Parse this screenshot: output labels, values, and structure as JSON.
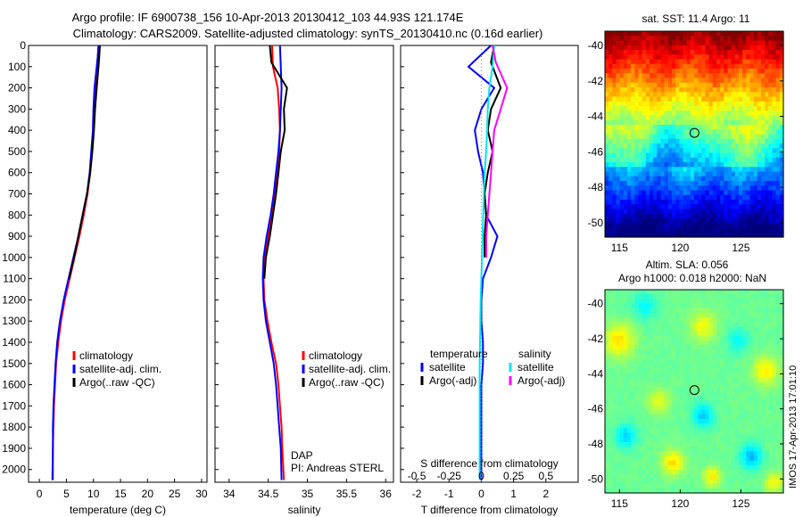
{
  "header": {
    "line1": "Argo profile: IF 6900738_156 10-Apr-2013 20130412_103 44.93S 121.174E",
    "line2": "Climatology: CARS2009. Satellite-adjusted climatology: synTS_20130410.nc (0.16d earlier)"
  },
  "footer": {
    "stamp": "IMOS 17-Apr-2013 17:01:10"
  },
  "colors": {
    "climatology": "#ff0000",
    "satellite": "#0000ff",
    "argo": "#000000",
    "satellite_salinity": "#00e5ee",
    "argo_salinity": "#ff00ff",
    "sst_cmap": [
      "#00007f",
      "#0000ff",
      "#0080ff",
      "#00ffff",
      "#80ff80",
      "#ffff00",
      "#ff8000",
      "#ff0000",
      "#7f0000"
    ]
  },
  "chart_data": [
    {
      "type": "line",
      "name": "temperature-panel",
      "xlabel": "temperature (deg C)",
      "ylabel": "",
      "xlim": [
        -2,
        31
      ],
      "ylim": [
        2060,
        0
      ],
      "xticks": [
        0,
        5,
        10,
        15,
        20,
        25,
        30
      ],
      "yticks": [
        0,
        100,
        200,
        300,
        400,
        500,
        600,
        700,
        800,
        900,
        1000,
        1100,
        1200,
        1300,
        1400,
        1500,
        1600,
        1700,
        1800,
        1900,
        2000
      ],
      "legend": [
        {
          "label": "climatology",
          "color": "#ff0000"
        },
        {
          "label": "satellite-adj. clim.",
          "color": "#0000ff"
        },
        {
          "label": "Argo(..raw -QC)",
          "color": "#000000"
        }
      ],
      "series": [
        {
          "name": "climatology",
          "color": "#ff0000",
          "x": [
            10.9,
            10.7,
            10.5,
            10.3,
            10.0,
            9.7,
            9.4,
            8.9,
            8.2,
            7.4,
            6.5,
            5.6,
            4.7,
            4.0,
            3.5,
            3.1,
            2.9,
            2.7,
            2.6,
            2.5,
            2.5
          ],
          "y": [
            0,
            100,
            200,
            300,
            400,
            500,
            600,
            700,
            800,
            900,
            1000,
            1100,
            1200,
            1300,
            1400,
            1500,
            1600,
            1700,
            1800,
            1900,
            2050
          ]
        },
        {
          "name": "satellite-adj. clim.",
          "color": "#0000ff",
          "x": [
            11.0,
            10.6,
            10.2,
            10.0,
            9.9,
            9.6,
            9.3,
            8.8,
            8.0,
            7.2,
            6.3,
            5.4,
            4.5,
            3.8,
            3.3,
            3.0,
            2.8,
            2.6,
            2.5,
            2.5,
            2.4
          ],
          "y": [
            0,
            100,
            200,
            300,
            400,
            500,
            600,
            700,
            800,
            900,
            1000,
            1100,
            1200,
            1300,
            1400,
            1500,
            1600,
            1700,
            1800,
            1900,
            2050
          ]
        },
        {
          "name": "Argo(..raw -QC)",
          "color": "#000000",
          "x": [
            11.2,
            11.0,
            10.6,
            10.3,
            10.1,
            9.8,
            9.4,
            8.8,
            8.0,
            7.2,
            6.4,
            5.5
          ],
          "y": [
            0,
            80,
            200,
            300,
            400,
            500,
            600,
            700,
            800,
            900,
            1000,
            1100
          ]
        }
      ]
    },
    {
      "type": "line",
      "name": "salinity-panel",
      "xlabel": "salinity",
      "ylabel": "",
      "xlim": [
        33.82,
        36.1
      ],
      "ylim": [
        2060,
        0
      ],
      "xticks": [
        34,
        34.5,
        35,
        35.5,
        36
      ],
      "legend": [
        {
          "label": "climatology",
          "color": "#ff0000"
        },
        {
          "label": "satellite-adj. clim.",
          "color": "#0000ff"
        },
        {
          "label": "Argo(..raw -QC)",
          "color": "#000000"
        }
      ],
      "annotation": [
        "DAP",
        "PI: Andreas STERL"
      ],
      "series": [
        {
          "name": "climatology",
          "color": "#ff0000",
          "x": [
            34.55,
            34.56,
            34.62,
            34.64,
            34.65,
            34.64,
            34.62,
            34.59,
            34.55,
            34.5,
            34.46,
            34.44,
            34.45,
            34.49,
            34.54,
            34.6,
            34.63,
            34.65,
            34.67,
            34.68,
            34.7
          ],
          "y": [
            0,
            100,
            200,
            300,
            400,
            500,
            600,
            700,
            800,
            900,
            1000,
            1100,
            1200,
            1300,
            1400,
            1500,
            1600,
            1700,
            1800,
            1900,
            2050
          ]
        },
        {
          "name": "satellite-adj. clim.",
          "color": "#0000ff",
          "x": [
            34.65,
            34.66,
            34.67,
            34.66,
            34.65,
            34.63,
            34.6,
            34.57,
            34.53,
            34.48,
            34.44,
            34.43,
            34.44,
            34.47,
            34.52,
            34.57,
            34.6,
            34.62,
            34.64,
            34.66,
            34.67
          ],
          "y": [
            0,
            100,
            200,
            300,
            400,
            500,
            600,
            700,
            800,
            900,
            1000,
            1100,
            1200,
            1300,
            1400,
            1500,
            1600,
            1700,
            1800,
            1900,
            2050
          ]
        },
        {
          "name": "Argo(..raw -QC)",
          "color": "#000000",
          "x": [
            34.52,
            34.54,
            34.74,
            34.7,
            34.71,
            34.66,
            34.63,
            34.6,
            34.56,
            34.52,
            34.47,
            34.45
          ],
          "y": [
            0,
            80,
            200,
            300,
            400,
            500,
            600,
            700,
            800,
            900,
            1000,
            1100
          ]
        }
      ]
    },
    {
      "type": "line",
      "name": "difference-panel",
      "xlabel": "T difference from climatology",
      "xlabel_top": "S difference from climatology",
      "xlim": [
        -2.5,
        3
      ],
      "ylim": [
        2060,
        0
      ],
      "xticks": [
        -2,
        -1,
        0,
        1,
        2
      ],
      "xticks_s": [
        "-0.5",
        "-0.25",
        "0",
        "0.25",
        "0.5"
      ],
      "legend": [
        {
          "label": "temperature",
          "color": "",
          "header": true
        },
        {
          "label": "satellite",
          "color": "#0000ff"
        },
        {
          "label": "Argo(-adj)",
          "color": "#000000"
        },
        {
          "label": "salinity",
          "color": "",
          "header": true
        },
        {
          "label": "satellite",
          "color": "#00e5ee"
        },
        {
          "label": "Argo(-adj)",
          "color": "#ff00ff"
        }
      ],
      "series": [
        {
          "name": "temperature satellite",
          "color": "#0000ff",
          "x": [
            0.3,
            -0.4,
            0.4,
            0.0,
            -0.2,
            -0.1,
            0.05,
            0.1,
            0.15,
            0.5,
            0.3,
            0.05,
            0.0,
            0.0,
            0.05,
            0.05,
            0.0,
            0.0,
            0.0,
            0.0,
            0.0
          ],
          "y": [
            0,
            100,
            200,
            300,
            400,
            500,
            600,
            700,
            800,
            900,
            1000,
            1100,
            1200,
            1300,
            1400,
            1500,
            1600,
            1700,
            1800,
            1900,
            2050
          ]
        },
        {
          "name": "temperature Argo(-adj)",
          "color": "#000000",
          "x": [
            0.4,
            0.3,
            0.6,
            0.3,
            0.2,
            0.35,
            0.2,
            0.1,
            0.15,
            0.1,
            0.1
          ],
          "y": [
            0,
            80,
            200,
            300,
            400,
            500,
            600,
            700,
            800,
            900,
            1000
          ]
        },
        {
          "name": "salinity satellite",
          "color": "#00e5ee",
          "x": [
            0.4,
            0.35,
            0.25,
            0.2,
            0.18,
            0.15,
            0.1,
            0.08,
            0.06,
            0.04,
            0.02,
            0.0,
            -0.02,
            -0.03,
            -0.04,
            -0.05,
            -0.05,
            -0.05,
            -0.05,
            -0.05,
            -0.05
          ],
          "y": [
            0,
            100,
            200,
            300,
            400,
            500,
            600,
            700,
            800,
            900,
            1000,
            1100,
            1200,
            1300,
            1400,
            1500,
            1600,
            1700,
            1800,
            1900,
            2050
          ]
        },
        {
          "name": "salinity Argo(-adj)",
          "color": "#ff00ff",
          "x": [
            0.35,
            0.45,
            0.8,
            0.6,
            0.4,
            0.35,
            0.3,
            0.25,
            0.2,
            0.15,
            0.15
          ],
          "y": [
            0,
            80,
            200,
            300,
            400,
            500,
            600,
            700,
            800,
            900,
            1000
          ]
        }
      ]
    },
    {
      "type": "heatmap",
      "name": "sst-map",
      "title": "sat. SST: 11.4  Argo: 11",
      "xlim": [
        113.8,
        128.5
      ],
      "ylim": [
        -50.8,
        -39.2
      ],
      "xticks": [
        115,
        120,
        125
      ],
      "yticks": [
        -40,
        -42,
        -44,
        -46,
        -48,
        -50
      ],
      "marker": {
        "lon": 121.174,
        "lat": -44.93
      }
    },
    {
      "type": "heatmap",
      "name": "sla-map",
      "title": "Altim. SLA: 0.056",
      "subtitle": "Argo h1000: 0.018 h2000: NaN",
      "xlim": [
        113.8,
        128.5
      ],
      "ylim": [
        -50.8,
        -39.2
      ],
      "xticks": [
        115,
        120,
        125
      ],
      "yticks": [
        -40,
        -42,
        -44,
        -46,
        -48,
        -50
      ],
      "marker": {
        "lon": 121.174,
        "lat": -44.93
      }
    }
  ]
}
